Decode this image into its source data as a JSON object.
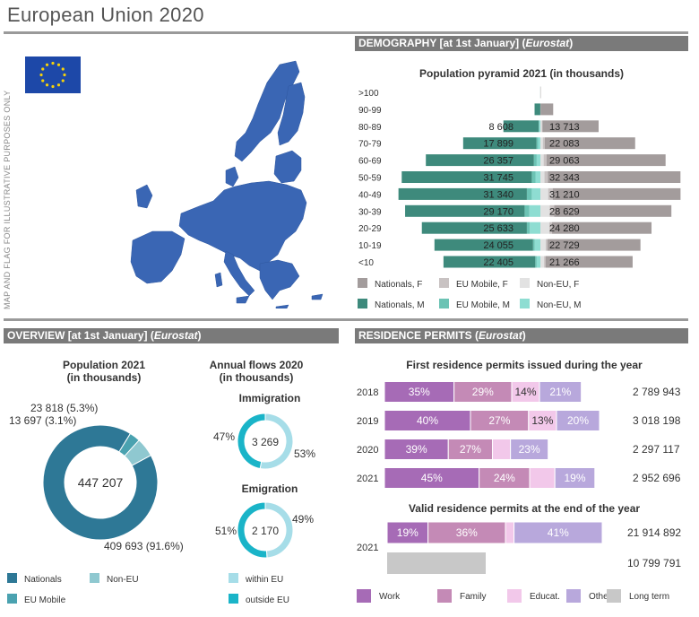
{
  "page": {
    "title": "European Union 2020",
    "map_note": "MAP AND FLAG FOR ILLUSTRATIVE PURPOSES ONLY"
  },
  "sections": {
    "demography": {
      "prefix": "DEMOGRAPHY [at 1st January] (",
      "source": "Eurostat",
      "suffix": ")"
    },
    "overview": {
      "prefix": "OVERVIEW [at 1st January] (",
      "source": "Eurostat",
      "suffix": ")"
    },
    "permits": {
      "prefix": "RESIDENCE PERMITS (",
      "source": "Eurostat",
      "suffix": ")"
    }
  },
  "colors": {
    "nationals": "#3e8a7c",
    "eu_mobile": "#6cc3b4",
    "non_eu": "#8eddd2",
    "nationals_f": "#a39c9c",
    "eu_mobile_f": "#c8c2c2",
    "non_eu_f": "#e2e2e2",
    "pop_nationals": "#2e7896",
    "pop_eu_mobile": "#4aa2b0",
    "pop_non_eu": "#8fc8d0",
    "within_eu": "#a6dde8",
    "outside_eu": "#1ab4c8",
    "work": "#a66bb6",
    "family": "#c48ab6",
    "educat": "#f2c8ea",
    "other": "#b8a8dc",
    "long_term": "#c8c8c8",
    "map": "#3a66b4",
    "flag": "#1d48a8",
    "star": "#f5d10a"
  },
  "chart_data": [
    {
      "type": "bar",
      "subtype": "population-pyramid",
      "title": "Population pyramid 2021 (in thousands)",
      "categories": [
        ">100",
        "90-99",
        "80-89",
        "70-79",
        "60-69",
        "50-59",
        "40-49",
        "30-39",
        "20-29",
        "10-19",
        "<10"
      ],
      "series": [
        {
          "name": "Nationals, M",
          "values": [
            20,
            1400,
            8608,
            17899,
            26357,
            31745,
            31340,
            29170,
            25633,
            24055,
            22405
          ]
        },
        {
          "name": "EU Mobile, M",
          "values": [
            0,
            8,
            120,
            400,
            700,
            900,
            1200,
            1150,
            700,
            400,
            350
          ]
        },
        {
          "name": "Non-EU, M",
          "values": [
            0,
            10,
            300,
            550,
            900,
            1200,
            2100,
            2700,
            2600,
            1400,
            900
          ]
        },
        {
          "name": "Nationals, F",
          "values": [
            80,
            3100,
            13713,
            22083,
            29063,
            32343,
            31210,
            28629,
            24280,
            22729,
            21266
          ]
        },
        {
          "name": "EU Mobile, F",
          "values": [
            0,
            10,
            150,
            450,
            700,
            850,
            1100,
            1050,
            650,
            400,
            350
          ]
        },
        {
          "name": "Non-EU, F",
          "values": [
            0,
            15,
            350,
            600,
            800,
            1000,
            1900,
            2300,
            2200,
            1300,
            900
          ]
        }
      ],
      "legend": [
        "Nationals, F",
        "EU Mobile, F",
        "Non-EU, F",
        "Nationals, M",
        "EU Mobile, M",
        "Non-EU, M"
      ],
      "label_values_m": [
        "",
        "",
        "8 608",
        "17 899",
        "26 357",
        "31 745",
        "31 340",
        "29 170",
        "25 633",
        "24 055",
        "22 405"
      ],
      "label_values_f": [
        "",
        "",
        "13 713",
        "22 083",
        "29 063",
        "32 343",
        "31 210",
        "28 629",
        "24 280",
        "22 729",
        "21 266"
      ]
    },
    {
      "type": "pie",
      "subtype": "donut",
      "title": "Population 2021\n(in thousands)",
      "title_lines": [
        "Population 2021",
        "(in thousands)"
      ],
      "center_label": "447 207",
      "slices": [
        {
          "name": "Nationals",
          "value": 409693,
          "label": "409 693 (91.6%)"
        },
        {
          "name": "EU Mobile",
          "value": 13697,
          "label": "13 697 (3.1%)"
        },
        {
          "name": "Non-EU",
          "value": 23818,
          "label": "23 818 (5.3%)"
        }
      ],
      "legend": [
        "Nationals",
        "Non-EU",
        "EU Mobile"
      ]
    },
    {
      "type": "pie",
      "subtype": "donut",
      "title_lines": [
        "Annual flows 2020",
        "(in thousands)"
      ],
      "subtitle": "Immigration",
      "center_label": "3 269",
      "slices": [
        {
          "name": "within EU",
          "value": 53,
          "label": "53%"
        },
        {
          "name": "outside EU",
          "value": 47,
          "label": "47%"
        }
      ]
    },
    {
      "type": "pie",
      "subtype": "donut",
      "subtitle": "Emigration",
      "center_label": "2 170",
      "slices": [
        {
          "name": "within EU",
          "value": 49,
          "label": "49%"
        },
        {
          "name": "outside EU",
          "value": 51,
          "label": "51%"
        }
      ],
      "legend": [
        "within EU",
        "outside EU"
      ]
    },
    {
      "type": "bar",
      "subtype": "stacked-horizontal",
      "title": "First residence permits issued during the year",
      "categories": [
        "2018",
        "2019",
        "2020",
        "2021"
      ],
      "totals": [
        "2 789 943",
        "3 018 198",
        "2 297 117",
        "2 952 696"
      ],
      "total_values": [
        2789943,
        3018198,
        2297117,
        2952696
      ],
      "series": [
        {
          "name": "Work",
          "values": [
            35,
            40,
            39,
            45
          ],
          "labels": [
            "35%",
            "40%",
            "39%",
            "45%"
          ]
        },
        {
          "name": "Family",
          "values": [
            29,
            27,
            27,
            24
          ],
          "labels": [
            "29%",
            "27%",
            "27%",
            "24%"
          ]
        },
        {
          "name": "Educat.",
          "values": [
            14,
            13,
            11,
            12
          ],
          "labels": [
            "14%",
            "13%",
            "",
            ""
          ]
        },
        {
          "name": "Other",
          "values": [
            21,
            20,
            23,
            19
          ],
          "labels": [
            "21%",
            "20%",
            "23%",
            "19%"
          ]
        }
      ]
    },
    {
      "type": "bar",
      "subtype": "stacked-horizontal",
      "title": "Valid residence permits at the end of the year",
      "categories": [
        "2021"
      ],
      "totals": [
        "21 914 892",
        "10 799 791"
      ],
      "total_values": [
        21914892,
        10799791
      ],
      "series": [
        {
          "name": "Work",
          "values": [
            19
          ],
          "labels": [
            "19%"
          ]
        },
        {
          "name": "Family",
          "values": [
            36
          ],
          "labels": [
            "36%"
          ]
        },
        {
          "name": "Educat.",
          "values": [
            4
          ],
          "labels": [
            ""
          ]
        },
        {
          "name": "Other",
          "values": [
            41
          ],
          "labels": [
            "41%"
          ]
        },
        {
          "name": "Long term",
          "values": [
            10799791
          ],
          "labels": [
            ""
          ]
        }
      ],
      "legend": [
        "Work",
        "Family",
        "Educat.",
        "Other",
        "Long term"
      ]
    }
  ]
}
